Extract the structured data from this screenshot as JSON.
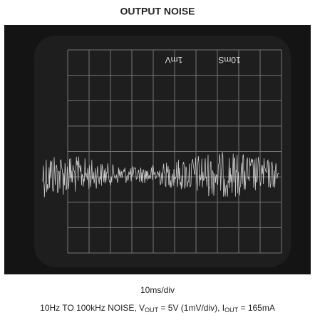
{
  "title": "OUTPUT NOISE",
  "scope": {
    "volts_label": "1mV",
    "time_label": "10mS"
  },
  "caption": {
    "timebase": "10ms/div",
    "conditions": [
      "10Hz TO 100kHz NOISE, V",
      "OUT",
      " = 5V (1mV/div), I",
      "OUT",
      " = 165mA"
    ]
  }
}
